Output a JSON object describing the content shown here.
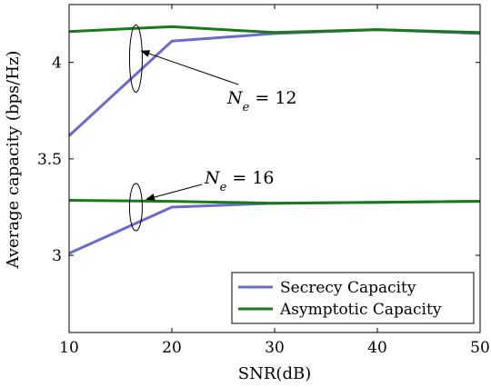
{
  "chart_data": {
    "type": "line",
    "xlabel": "SNR(dB)",
    "ylabel": "Average capacity (bps/Hz)",
    "xlim": [
      10,
      50
    ],
    "ylim": [
      2.6,
      4.3
    ],
    "x_ticks": [
      10,
      20,
      30,
      40,
      50
    ],
    "y_ticks": [
      3,
      3.5,
      4
    ],
    "grid": false,
    "legend_position": "bottom-right",
    "legend": [
      "Secrecy Capacity",
      "Asymptotic Capacity"
    ],
    "colors": {
      "secrecy": "#6b6bcc",
      "asymptotic": "#1a7a1a"
    },
    "series": [
      {
        "name": "Secrecy Capacity",
        "group": "Ne12",
        "x": [
          10,
          20,
          30,
          40,
          50
        ],
        "values": [
          3.62,
          4.11,
          4.15,
          4.17,
          4.15
        ]
      },
      {
        "name": "Asymptotic Capacity",
        "group": "Ne12",
        "x": [
          10,
          20,
          30,
          40,
          50
        ],
        "values": [
          4.16,
          4.185,
          4.155,
          4.17,
          4.155
        ]
      },
      {
        "name": "Secrecy Capacity",
        "group": "Ne16",
        "x": [
          10,
          20,
          30,
          40,
          50
        ],
        "values": [
          3.01,
          3.25,
          3.27,
          3.275,
          3.28
        ]
      },
      {
        "name": "Asymptotic Capacity",
        "group": "Ne16",
        "x": [
          10,
          20,
          30,
          40,
          50
        ],
        "values": [
          3.285,
          3.28,
          3.27,
          3.275,
          3.28
        ]
      }
    ],
    "annotations": [
      {
        "base": "N",
        "sub": "e",
        "rest": " = 12",
        "points_to": [
          16.5,
          4.05
        ]
      },
      {
        "base": "N",
        "sub": "e",
        "rest": " = 16",
        "points_to": [
          17,
          3.3
        ]
      }
    ]
  }
}
